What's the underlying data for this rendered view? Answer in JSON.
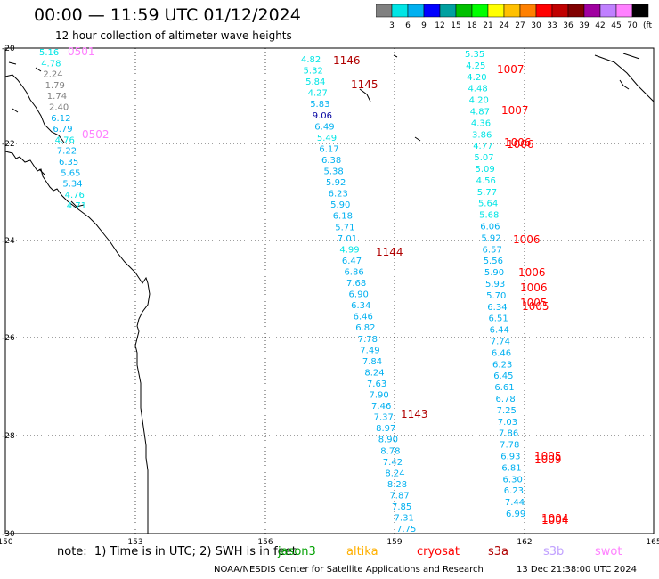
{
  "title": "00:00 — 11:59 UTC 01/12/2024",
  "subtitle": "12 hour collection of altimeter wave heights",
  "colorbar": {
    "labels": [
      "3",
      "6",
      "9",
      "12",
      "15",
      "18",
      "21",
      "24",
      "27",
      "30",
      "33",
      "36",
      "39",
      "42",
      "45",
      "70"
    ],
    "unit": "(ft)",
    "colors": [
      "#808080",
      "#00e5e5",
      "#00b0f0",
      "#0000ff",
      "#00a0a0",
      "#00c000",
      "#00ff00",
      "#ffff00",
      "#ffc000",
      "#ff8000",
      "#ff0000",
      "#c00000",
      "#800000",
      "#a000a0",
      "#c080ff",
      "#ff80ff",
      "#000000"
    ]
  },
  "axes": {
    "lon_labels": [
      "150",
      "153",
      "156",
      "159",
      "162",
      "165"
    ],
    "lat_labels": [
      "-20",
      "-22",
      "-24",
      "-26",
      "-28",
      "-30"
    ]
  },
  "note": "note:  1) Time is in UTC; 2) SWH is in feet",
  "satellites": [
    {
      "name": "jason3",
      "color": "#00a000"
    },
    {
      "name": "altika",
      "color": "#ffb000"
    },
    {
      "name": "cryosat",
      "color": "#ff0000"
    },
    {
      "name": "s3a",
      "color": "#b00000"
    },
    {
      "name": "s3b",
      "color": "#c0a0ff"
    },
    {
      "name": "swot",
      "color": "#ff80ff"
    }
  ],
  "footer": "NOAA/NESDIS Center for Satellite Applications and Research",
  "footer_date": "13 Dec 21:38:00 UTC 2024",
  "tracks": {
    "west": [
      {
        "v": "5.16",
        "c": "#00e5e5"
      },
      {
        "v": "4.78",
        "c": "#00e5e5"
      },
      {
        "v": "2.24",
        "c": "#808080"
      },
      {
        "v": "1.79",
        "c": "#808080"
      },
      {
        "v": "1.74",
        "c": "#808080"
      },
      {
        "v": "2.40",
        "c": "#808080"
      },
      {
        "v": "6.12",
        "c": "#00b0f0"
      },
      {
        "v": "6.79",
        "c": "#00b0f0"
      },
      {
        "v": "4.76",
        "c": "#00e5e5"
      },
      {
        "v": "7.22",
        "c": "#00b0f0"
      },
      {
        "v": "6.35",
        "c": "#00b0f0"
      },
      {
        "v": "5.65",
        "c": "#00b0f0"
      },
      {
        "v": "5.34",
        "c": "#00b0f0"
      },
      {
        "v": "4.76",
        "c": "#00e5e5"
      },
      {
        "v": "4.71",
        "c": "#00e5e5"
      }
    ],
    "west_times": [
      {
        "v": "0501",
        "c": "#ff80ff"
      },
      {
        "v": "0502",
        "c": "#ff80ff"
      }
    ],
    "center": [
      {
        "v": "4.82",
        "c": "#00e5e5"
      },
      {
        "v": "5.32",
        "c": "#00e5e5"
      },
      {
        "v": "5.84",
        "c": "#00e5e5"
      },
      {
        "v": "4.27",
        "c": "#00e5e5"
      },
      {
        "v": "5.83",
        "c": "#00b0f0"
      },
      {
        "v": "9.06",
        "c": "#0000a0"
      },
      {
        "v": "6.49",
        "c": "#00b0f0"
      },
      {
        "v": "5.49",
        "c": "#00e5e5"
      },
      {
        "v": "6.17",
        "c": "#00b0f0"
      },
      {
        "v": "6.38",
        "c": "#00b0f0"
      },
      {
        "v": "5.38",
        "c": "#00b0f0"
      },
      {
        "v": "5.92",
        "c": "#00b0f0"
      },
      {
        "v": "6.23",
        "c": "#00b0f0"
      },
      {
        "v": "5.90",
        "c": "#00b0f0"
      },
      {
        "v": "6.18",
        "c": "#00b0f0"
      },
      {
        "v": "5.71",
        "c": "#00b0f0"
      },
      {
        "v": "7.01",
        "c": "#00b0f0"
      },
      {
        "v": "4.99",
        "c": "#00e5e5"
      },
      {
        "v": "6.47",
        "c": "#00b0f0"
      },
      {
        "v": "6.86",
        "c": "#00b0f0"
      },
      {
        "v": "7.68",
        "c": "#00b0f0"
      },
      {
        "v": "6.90",
        "c": "#00b0f0"
      },
      {
        "v": "6.34",
        "c": "#00b0f0"
      },
      {
        "v": "6.46",
        "c": "#00b0f0"
      },
      {
        "v": "6.82",
        "c": "#00b0f0"
      },
      {
        "v": "7.78",
        "c": "#00b0f0"
      },
      {
        "v": "7.49",
        "c": "#00b0f0"
      },
      {
        "v": "7.84",
        "c": "#00b0f0"
      },
      {
        "v": "8.24",
        "c": "#00b0f0"
      },
      {
        "v": "7.63",
        "c": "#00b0f0"
      },
      {
        "v": "7.90",
        "c": "#00b0f0"
      },
      {
        "v": "7.46",
        "c": "#00b0f0"
      },
      {
        "v": "7.37",
        "c": "#00b0f0"
      },
      {
        "v": "8.97",
        "c": "#00b0f0"
      },
      {
        "v": "8.90",
        "c": "#00b0f0"
      },
      {
        "v": "8.78",
        "c": "#00b0f0"
      },
      {
        "v": "7.42",
        "c": "#00b0f0"
      },
      {
        "v": "8.24",
        "c": "#00b0f0"
      },
      {
        "v": "8.28",
        "c": "#00b0f0"
      },
      {
        "v": "7.87",
        "c": "#00b0f0"
      },
      {
        "v": "7.85",
        "c": "#00b0f0"
      },
      {
        "v": "7.31",
        "c": "#00b0f0"
      },
      {
        "v": "7.75",
        "c": "#00b0f0"
      }
    ],
    "center_times": [
      {
        "v": "1146",
        "c": "#b00000"
      },
      {
        "v": "1145",
        "c": "#b00000"
      },
      {
        "v": "1144",
        "c": "#b00000"
      },
      {
        "v": "1143",
        "c": "#b00000"
      }
    ],
    "east": [
      {
        "v": "5.35",
        "c": "#00e5e5"
      },
      {
        "v": "4.25",
        "c": "#00e5e5"
      },
      {
        "v": "4.20",
        "c": "#00e5e5"
      },
      {
        "v": "4.48",
        "c": "#00e5e5"
      },
      {
        "v": "4.20",
        "c": "#00e5e5"
      },
      {
        "v": "4.87",
        "c": "#00e5e5"
      },
      {
        "v": "4.36",
        "c": "#00e5e5"
      },
      {
        "v": "3.86",
        "c": "#00e5e5"
      },
      {
        "v": "4.77",
        "c": "#00e5e5"
      },
      {
        "v": "5.07",
        "c": "#00e5e5"
      },
      {
        "v": "5.09",
        "c": "#00e5e5"
      },
      {
        "v": "4.56",
        "c": "#00e5e5"
      },
      {
        "v": "5.77",
        "c": "#00e5e5"
      },
      {
        "v": "5.64",
        "c": "#00e5e5"
      },
      {
        "v": "5.68",
        "c": "#00e5e5"
      },
      {
        "v": "6.06",
        "c": "#00b0f0"
      },
      {
        "v": "5.92",
        "c": "#00b0f0"
      },
      {
        "v": "6.57",
        "c": "#00b0f0"
      },
      {
        "v": "5.56",
        "c": "#00b0f0"
      },
      {
        "v": "5.90",
        "c": "#00b0f0"
      },
      {
        "v": "5.93",
        "c": "#00b0f0"
      },
      {
        "v": "5.70",
        "c": "#00b0f0"
      },
      {
        "v": "6.34",
        "c": "#00b0f0"
      },
      {
        "v": "6.51",
        "c": "#00b0f0"
      },
      {
        "v": "6.44",
        "c": "#00b0f0"
      },
      {
        "v": "7.74",
        "c": "#00b0f0"
      },
      {
        "v": "6.46",
        "c": "#00b0f0"
      },
      {
        "v": "6.23",
        "c": "#00b0f0"
      },
      {
        "v": "6.45",
        "c": "#00b0f0"
      },
      {
        "v": "6.61",
        "c": "#00b0f0"
      },
      {
        "v": "6.78",
        "c": "#00b0f0"
      },
      {
        "v": "7.25",
        "c": "#00b0f0"
      },
      {
        "v": "7.03",
        "c": "#00b0f0"
      },
      {
        "v": "7.86",
        "c": "#00b0f0"
      },
      {
        "v": "7.78",
        "c": "#00b0f0"
      },
      {
        "v": "6.93",
        "c": "#00b0f0"
      },
      {
        "v": "6.81",
        "c": "#00b0f0"
      },
      {
        "v": "6.30",
        "c": "#00b0f0"
      },
      {
        "v": "6.23",
        "c": "#00b0f0"
      },
      {
        "v": "7.44",
        "c": "#00b0f0"
      },
      {
        "v": "6.99",
        "c": "#00b0f0"
      }
    ],
    "east_times": [
      {
        "v": "1007",
        "c": "#ff0000"
      },
      {
        "v": "1007",
        "c": "#ff0000"
      },
      {
        "v": "1006",
        "c": "#ff0000"
      },
      {
        "v": "1006",
        "c": "#ff0000"
      },
      {
        "v": "1006",
        "c": "#ff0000"
      },
      {
        "v": "1006",
        "c": "#ff0000"
      },
      {
        "v": "1006",
        "c": "#ff0000"
      },
      {
        "v": "1005",
        "c": "#ff0000"
      },
      {
        "v": "1005",
        "c": "#ff0000"
      },
      {
        "v": "1005",
        "c": "#ff0000"
      },
      {
        "v": "1009",
        "c": "#ff0000"
      },
      {
        "v": "1004",
        "c": "#ff0000"
      },
      {
        "v": "1004",
        "c": "#ff0000"
      }
    ]
  }
}
